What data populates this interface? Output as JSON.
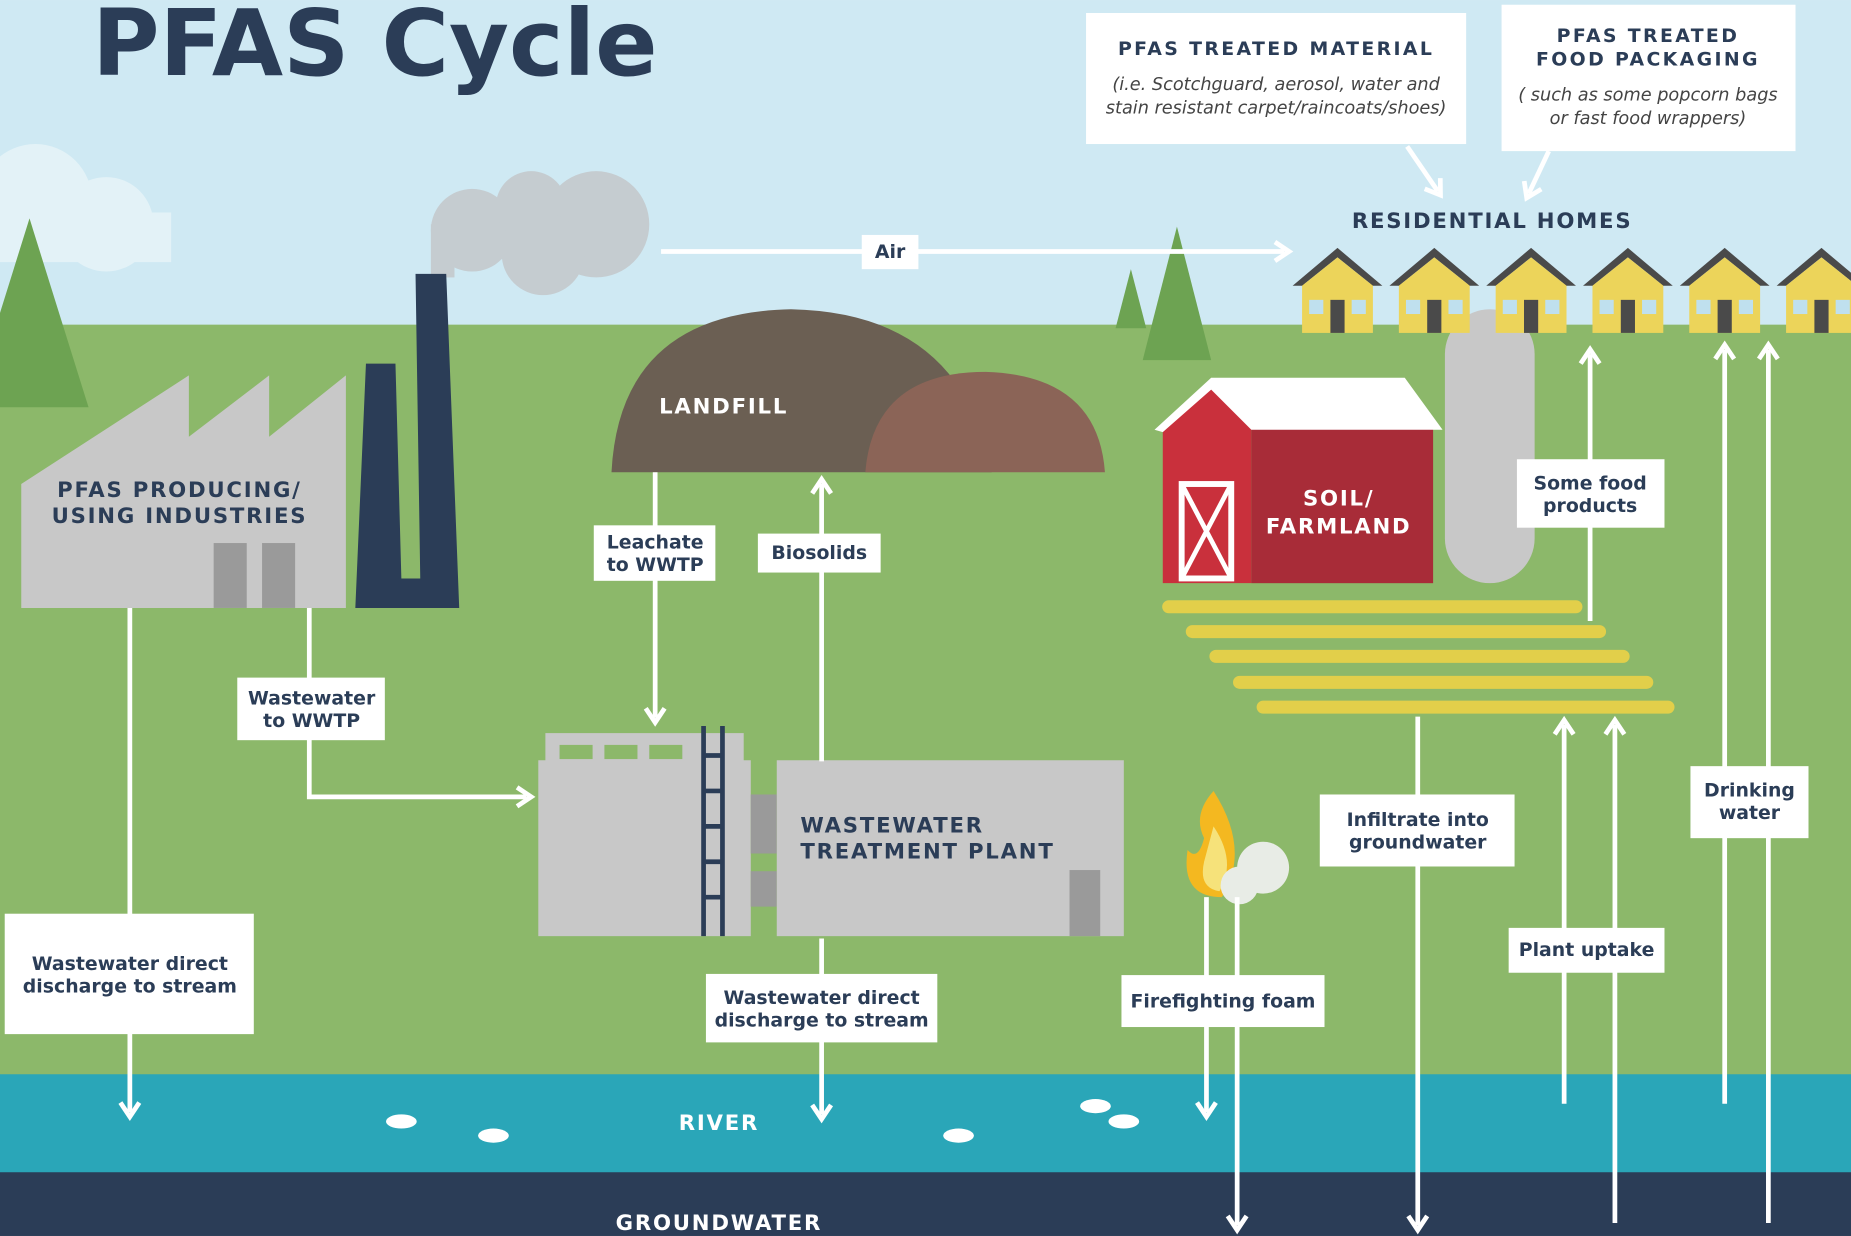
{
  "title": "PFAS Cycle",
  "info_boxes": [
    {
      "heading": [
        "PFAS TREATED MATERIAL"
      ],
      "note": [
        "(i.e. Scotchguard, aerosol, water and",
        "stain resistant carpet/raincoats/shoes)"
      ]
    },
    {
      "heading": [
        "PFAS TREATED",
        "FOOD PACKAGING"
      ],
      "note": [
        "( such as some popcorn bags",
        "or fast food wrappers)"
      ]
    }
  ],
  "places": {
    "homes": [
      "RESIDENTIAL HOMES"
    ],
    "landfill": [
      "LANDFILL"
    ],
    "industries": [
      "PFAS PRODUCING/",
      "USING INDUSTRIES"
    ],
    "farmland": [
      "SOIL/",
      "FARMLAND"
    ],
    "wwtp": [
      "WASTEWATER",
      "TREATMENT PLANT"
    ],
    "river": [
      "RIVER"
    ],
    "groundwater": [
      "GROUNDWATER"
    ]
  },
  "flows": {
    "air": [
      "Air"
    ],
    "leachate": [
      "Leachate",
      "to WWTP"
    ],
    "biosolids": [
      "Biosolids"
    ],
    "wastewater_to_wwtp": [
      "Wastewater",
      "to WWTP"
    ],
    "some_food": [
      "Some food",
      "products"
    ],
    "infiltrate": [
      "Infiltrate into",
      "groundwater"
    ],
    "drinking": [
      "Drinking",
      "water"
    ],
    "direct_industry": [
      "Wastewater direct",
      "discharge to stream"
    ],
    "direct_wwtp": [
      "Wastewater direct",
      "discharge to stream"
    ],
    "firefighting": [
      "Firefighting foam"
    ],
    "plant_uptake": [
      "Plant uptake"
    ]
  }
}
